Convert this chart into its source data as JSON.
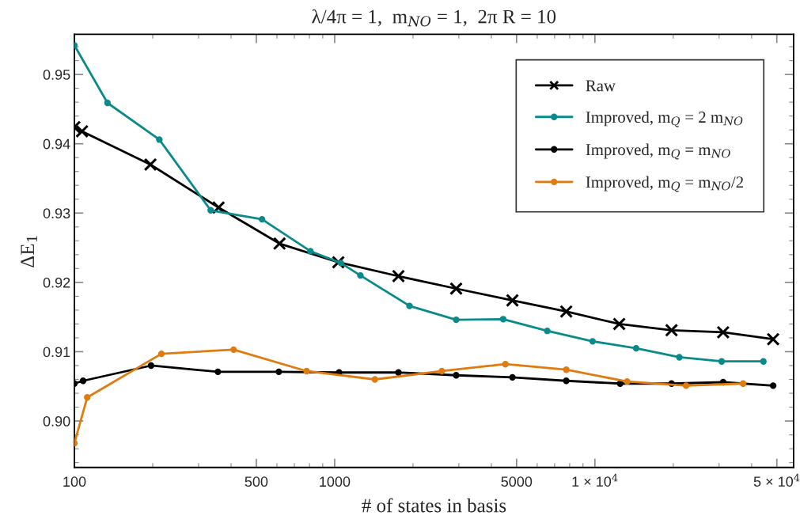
{
  "chart_data": {
    "type": "line",
    "title": "λ/4π = 1,  m$_{NO}$ = 1,  2π R = 10",
    "xlabel": "# of states in basis",
    "ylabel": "ΔE$_{1}$",
    "log": "x",
    "xlim": [
      100,
      58000
    ],
    "ylim": [
      0.8933,
      0.9558
    ],
    "xticks": [
      100,
      {
        "value": 200,
        "label": null
      },
      {
        "value": 300,
        "label": null
      },
      {
        "value": 400,
        "label": null
      },
      500,
      {
        "value": 600,
        "label": null
      },
      {
        "value": 700,
        "label": null
      },
      {
        "value": 800,
        "label": null
      },
      {
        "value": 900,
        "label": null
      },
      1000,
      {
        "value": 2000,
        "label": null
      },
      {
        "value": 3000,
        "label": null
      },
      {
        "value": 4000,
        "label": null
      },
      5000,
      {
        "value": 6000,
        "label": null
      },
      {
        "value": 7000,
        "label": null
      },
      {
        "value": 8000,
        "label": null
      },
      {
        "value": 9000,
        "label": null
      },
      {
        "value": 10000,
        "label": "1 × 10$^{4}$"
      },
      {
        "value": 20000,
        "label": null
      },
      {
        "value": 30000,
        "label": null
      },
      {
        "value": 40000,
        "label": null
      },
      {
        "value": 50000,
        "label": "5 × 10$^{4}$"
      }
    ],
    "yticks": [
      {
        "value": 0.894,
        "label": null
      },
      {
        "value": 0.896,
        "label": null
      },
      {
        "value": 0.898,
        "label": null
      },
      {
        "value": 0.9,
        "label": "0.90"
      },
      {
        "value": 0.902,
        "label": null
      },
      {
        "value": 0.904,
        "label": null
      },
      {
        "value": 0.906,
        "label": null
      },
      {
        "value": 0.908,
        "label": null
      },
      0.91,
      {
        "value": 0.912,
        "label": null
      },
      {
        "value": 0.914,
        "label": null
      },
      {
        "value": 0.916,
        "label": null
      },
      {
        "value": 0.918,
        "label": null
      },
      0.92,
      {
        "value": 0.922,
        "label": null
      },
      {
        "value": 0.924,
        "label": null
      },
      {
        "value": 0.926,
        "label": null
      },
      {
        "value": 0.928,
        "label": null
      },
      0.93,
      {
        "value": 0.932,
        "label": null
      },
      {
        "value": 0.934,
        "label": null
      },
      {
        "value": 0.936,
        "label": null
      },
      {
        "value": 0.938,
        "label": null
      },
      0.94,
      {
        "value": 0.942,
        "label": null
      },
      {
        "value": 0.944,
        "label": null
      },
      {
        "value": 0.946,
        "label": null
      },
      {
        "value": 0.948,
        "label": null
      },
      0.95,
      {
        "value": 0.952,
        "label": null
      },
      {
        "value": 0.954,
        "label": null
      }
    ],
    "grid": false,
    "legend": "top right",
    "series": [
      {
        "name": "Raw",
        "color": "#000000",
        "marker": "cross",
        "x": [
          100,
          107,
          196,
          358,
          614,
          1033,
          1758,
          2930,
          4820,
          7760,
          12400,
          19700,
          31100,
          48400
        ],
        "values": [
          0.9424,
          0.9418,
          0.937,
          0.9308,
          0.9256,
          0.9229,
          0.9209,
          0.9191,
          0.9174,
          0.9158,
          0.914,
          0.9131,
          0.9128,
          0.9118
        ]
      },
      {
        "name": "Improved, m$_{Q}$ = 2 m$_{NO}$",
        "color": "#0b8a8a",
        "marker": "circle",
        "x": [
          100,
          134,
          212,
          334,
          526,
          807,
          1056,
          1256,
          1940,
          2930,
          4440,
          6560,
          9800,
          14400,
          21100,
          30700,
          44400
        ],
        "values": [
          0.9542,
          0.9459,
          0.9406,
          0.9304,
          0.9291,
          0.9245,
          0.9228,
          0.921,
          0.9166,
          0.9146,
          0.9147,
          0.913,
          0.9115,
          0.9105,
          0.9092,
          0.9086,
          0.9086
        ]
      },
      {
        "name": "Improved, m$_{Q}$ = m$_{NO}$",
        "color": "#000000",
        "marker": "circle",
        "x": [
          100,
          108,
          197,
          356,
          610,
          1040,
          1758,
          2930,
          4820,
          7760,
          12500,
          19700,
          31100,
          48400
        ],
        "values": [
          0.9054,
          0.9058,
          0.908,
          0.9071,
          0.9071,
          0.907,
          0.907,
          0.9066,
          0.9063,
          0.9058,
          0.9054,
          0.9054,
          0.9056,
          0.9051
        ]
      },
      {
        "name": "Improved, m$_{Q}$ = m$_{NO}$/2",
        "color": "#e07b10",
        "marker": "circle",
        "x": [
          100,
          112,
          216,
          409,
          780,
          1427,
          2580,
          4530,
          7760,
          13300,
          22400,
          37100
        ],
        "values": [
          0.8968,
          0.9034,
          0.9097,
          0.9103,
          0.9072,
          0.906,
          0.9072,
          0.9082,
          0.9074,
          0.9057,
          0.9051,
          0.9054
        ]
      }
    ]
  }
}
